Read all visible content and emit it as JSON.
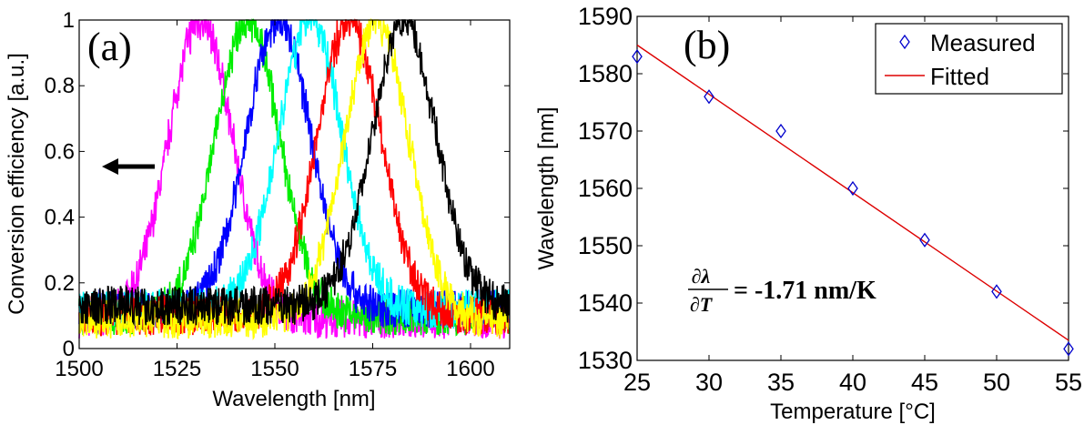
{
  "chart_data": [
    {
      "type": "line",
      "panel_label": "(a)",
      "xlabel": "Wavelength [nm]",
      "ylabel": "Conversion efficiency [a.u.]",
      "xlim": [
        1500,
        1610
      ],
      "ylim": [
        0,
        1
      ],
      "xticks": [
        "1500",
        "1525",
        "1550",
        "1575",
        "1600"
      ],
      "yticks": [
        "0",
        "0.2",
        "0.4",
        "0.6",
        "0.8",
        "1"
      ],
      "grid": false,
      "annotation": "left arrow",
      "series": [
        {
          "color": "#ff00ff",
          "peak_wavelength": 1531,
          "peak": 1.0,
          "baseline": 0.09
        },
        {
          "color": "#00ee00",
          "peak_wavelength": 1543,
          "peak": 1.0,
          "baseline": 0.1
        },
        {
          "color": "#0000ff",
          "peak_wavelength": 1551,
          "peak": 1.0,
          "baseline": 0.12
        },
        {
          "color": "#00ffff",
          "peak_wavelength": 1559,
          "peak": 1.0,
          "baseline": 0.12
        },
        {
          "color": "#ff0000",
          "peak_wavelength": 1569,
          "peak": 1.0,
          "baseline": 0.1
        },
        {
          "color": "#ffff00",
          "peak_wavelength": 1576,
          "peak": 1.0,
          "baseline": 0.09
        },
        {
          "color": "#000000",
          "peak_wavelength": 1583,
          "peak": 1.0,
          "baseline": 0.13
        }
      ]
    },
    {
      "type": "scatter",
      "panel_label": "(b)",
      "xlabel": "Temperature [°C]",
      "ylabel": "Wavelength [nm]",
      "xlim": [
        25,
        55
      ],
      "ylim": [
        1530,
        1590
      ],
      "xticks": [
        "25",
        "30",
        "35",
        "40",
        "45",
        "50",
        "55"
      ],
      "yticks": [
        "1530",
        "1540",
        "1550",
        "1560",
        "1570",
        "1580",
        "1590"
      ],
      "grid": false,
      "legend_position": "top-right",
      "series": [
        {
          "name": "Measured",
          "marker": "diamond",
          "color": "#0000cc",
          "x": [
            25,
            30,
            35,
            40,
            45,
            50,
            55
          ],
          "y": [
            1583,
            1576,
            1570,
            1560,
            1551,
            1542,
            1532
          ]
        },
        {
          "name": "Fitted",
          "line": true,
          "color": "#dd0000",
          "x": [
            25,
            55
          ],
          "y": [
            1585,
            1533.5
          ]
        }
      ],
      "annotation": {
        "numerator": "∂λ",
        "denominator": "∂T",
        "text": "= -1.71 nm/K"
      }
    }
  ]
}
